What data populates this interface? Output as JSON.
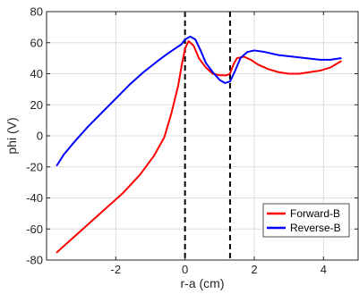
{
  "chart_data": {
    "type": "line",
    "xlabel": "r-a (cm)",
    "ylabel": "phi (V)",
    "xlim": [
      -4,
      5
    ],
    "ylim": [
      -80,
      80
    ],
    "xticks": [
      -2,
      0,
      2,
      4
    ],
    "xtick_labels": [
      "-2",
      "0",
      "2",
      "4"
    ],
    "yticks": [
      -80,
      -60,
      -40,
      -20,
      0,
      20,
      40,
      60,
      80
    ],
    "ytick_labels": [
      "-80",
      "-60",
      "-40",
      "-20",
      "0",
      "20",
      "40",
      "60",
      "80"
    ],
    "grid": true,
    "legend_position": "bottom-right",
    "vertical_lines": [
      0,
      1.3
    ],
    "series": [
      {
        "name": "Forward-B",
        "color": "#ff0000",
        "x": [
          -3.7,
          -3.3,
          -2.8,
          -2.3,
          -1.8,
          -1.3,
          -0.9,
          -0.6,
          -0.4,
          -0.2,
          -0.1,
          0.0,
          0.1,
          0.25,
          0.4,
          0.6,
          0.8,
          1.0,
          1.2,
          1.3,
          1.4,
          1.5,
          1.7,
          1.9,
          2.1,
          2.4,
          2.7,
          3.0,
          3.3,
          3.6,
          3.9,
          4.2,
          4.5
        ],
        "y": [
          -75,
          -67,
          -57,
          -47,
          -37,
          -25,
          -13,
          -1,
          14,
          32,
          45,
          56,
          61,
          58,
          50,
          44,
          40,
          39,
          39,
          40,
          46,
          50,
          51,
          49,
          46,
          43,
          41,
          40,
          40,
          41,
          42,
          44,
          48
        ]
      },
      {
        "name": "Reverse-B",
        "color": "#0000ff",
        "x": [
          -3.7,
          -3.5,
          -3.2,
          -2.8,
          -2.4,
          -2.0,
          -1.6,
          -1.2,
          -0.8,
          -0.5,
          -0.3,
          -0.1,
          0.0,
          0.15,
          0.3,
          0.45,
          0.6,
          0.8,
          1.0,
          1.15,
          1.3,
          1.45,
          1.6,
          1.8,
          2.0,
          2.3,
          2.7,
          3.1,
          3.5,
          3.9,
          4.2,
          4.5
        ],
        "y": [
          -19,
          -12,
          -4,
          6,
          15,
          24,
          33,
          41,
          48,
          53,
          56,
          59,
          62,
          64,
          62,
          55,
          47,
          41,
          36,
          34,
          35,
          42,
          50,
          54,
          55,
          54,
          52,
          51,
          50,
          49,
          49,
          50
        ]
      }
    ]
  }
}
